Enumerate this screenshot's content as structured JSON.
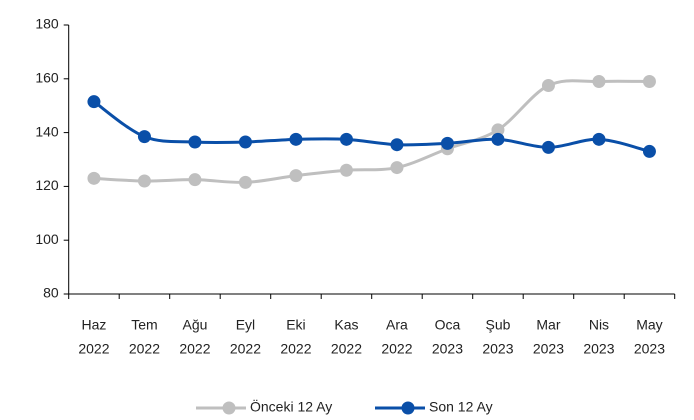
{
  "chart_data": {
    "type": "line",
    "categories": [
      [
        "Haz",
        "2022"
      ],
      [
        "Tem",
        "2022"
      ],
      [
        "Ağu",
        "2022"
      ],
      [
        "Eyl",
        "2022"
      ],
      [
        "Eki",
        "2022"
      ],
      [
        "Kas",
        "2022"
      ],
      [
        "Ara",
        "2022"
      ],
      [
        "Oca",
        "2023"
      ],
      [
        "Şub",
        "2023"
      ],
      [
        "Mar",
        "2023"
      ],
      [
        "Nis",
        "2023"
      ],
      [
        "May",
        "2023"
      ]
    ],
    "series": [
      {
        "name": "Önceki 12 Ay",
        "color": "#bfbfbf",
        "values": [
          123,
          122,
          122.5,
          121.5,
          124,
          126,
          127,
          134,
          141,
          157.5,
          159,
          159
        ]
      },
      {
        "name": "Son 12 Ay",
        "color": "#0a4fa8",
        "values": [
          151.5,
          138.5,
          136.5,
          136.5,
          137.5,
          137.5,
          135.5,
          136,
          137.5,
          134.5,
          137.5,
          133
        ]
      }
    ],
    "ylim": [
      80,
      180
    ],
    "yticks": [
      80,
      100,
      120,
      140,
      160,
      180
    ],
    "grid": false,
    "smooth": true,
    "legend": "bottom"
  }
}
